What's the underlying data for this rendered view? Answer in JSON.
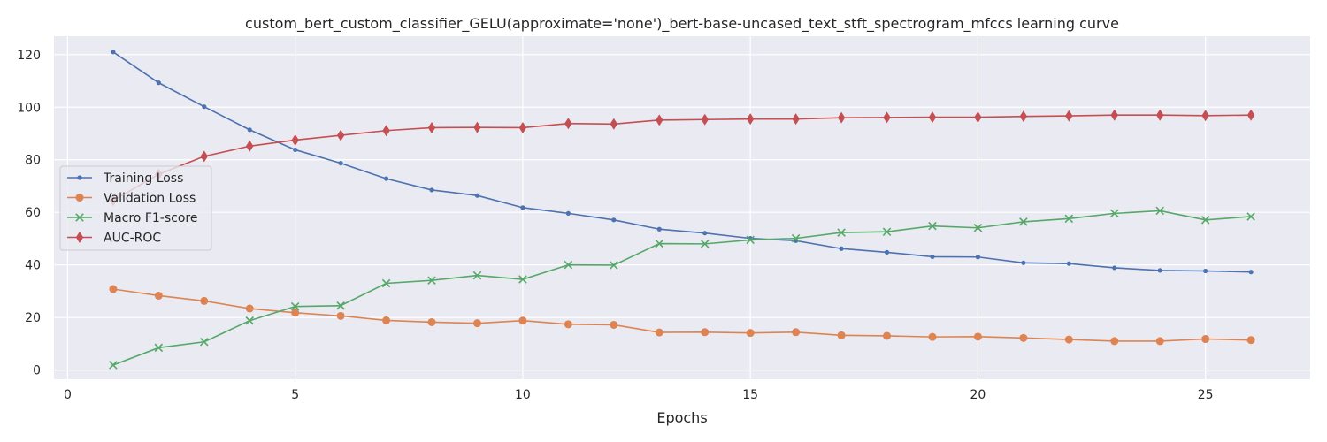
{
  "chart_data": {
    "type": "line",
    "title": "custom_bert_custom_classifier_GELU(approximate='none')_bert-base-uncased_text_stft_spectrogram_mfccs learning curve",
    "xlabel": "Epochs",
    "ylabel": "",
    "xlim": [
      -0.3,
      27.3
    ],
    "ylim": [
      -3.5,
      127
    ],
    "xticks": [
      0,
      5,
      10,
      15,
      20,
      25
    ],
    "yticks": [
      0,
      20,
      40,
      60,
      80,
      100,
      120
    ],
    "grid": true,
    "legend_position": "center-left",
    "x": [
      1,
      2,
      3,
      4,
      5,
      6,
      7,
      8,
      9,
      10,
      11,
      12,
      13,
      14,
      15,
      16,
      17,
      18,
      19,
      20,
      21,
      22,
      23,
      24,
      25,
      26
    ],
    "series": [
      {
        "name": "Training Loss",
        "color": "#4c72b0",
        "marker": "dot",
        "values": [
          121.0,
          109.3,
          100.2,
          91.4,
          83.8,
          78.7,
          72.8,
          68.5,
          66.4,
          61.8,
          59.6,
          57.1,
          53.6,
          52.1,
          50.1,
          49.2,
          46.2,
          44.8,
          43.1,
          43.0,
          40.8,
          40.5,
          38.9,
          37.9,
          37.7,
          37.3
        ]
      },
      {
        "name": "Validation Loss",
        "color": "#dd8452",
        "marker": "circle",
        "values": [
          30.8,
          28.3,
          26.3,
          23.4,
          21.8,
          20.6,
          18.9,
          18.2,
          17.8,
          18.8,
          17.4,
          17.2,
          14.3,
          14.4,
          14.1,
          14.4,
          13.2,
          13.0,
          12.6,
          12.7,
          12.2,
          11.6,
          11.0,
          11.0,
          11.8,
          11.4
        ]
      },
      {
        "name": "Macro F1-score",
        "color": "#55a868",
        "marker": "x",
        "values": [
          1.9,
          8.5,
          10.7,
          18.8,
          24.2,
          24.5,
          33.0,
          34.1,
          36.0,
          34.5,
          40.0,
          39.9,
          48.1,
          48.0,
          49.5,
          50.1,
          52.3,
          52.6,
          54.8,
          54.1,
          56.4,
          57.6,
          59.6,
          60.6,
          57.1,
          58.4
        ]
      },
      {
        "name": "AUC-ROC",
        "color": "#c44e52",
        "marker": "diamond",
        "values": [
          64.5,
          74.5,
          81.3,
          85.2,
          87.5,
          89.3,
          91.1,
          92.2,
          92.3,
          92.2,
          93.8,
          93.6,
          95.1,
          95.3,
          95.5,
          95.5,
          96.0,
          96.1,
          96.2,
          96.2,
          96.5,
          96.7,
          97.0,
          97.0,
          96.8,
          97.0
        ]
      }
    ]
  }
}
